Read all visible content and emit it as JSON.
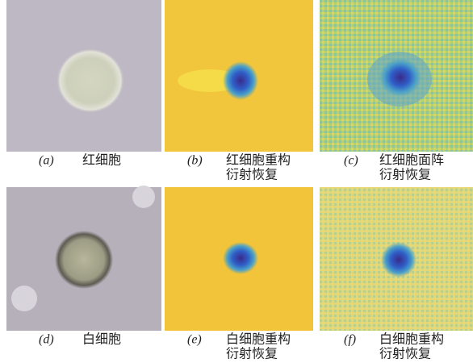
{
  "panels": [
    {
      "label": "(a)",
      "caption": [
        "红细胞"
      ]
    },
    {
      "label": "(b)",
      "caption": [
        "红细胞重构",
        "衍射恢复"
      ]
    },
    {
      "label": "(c)",
      "caption": [
        "红细胞面阵",
        "衍射恢复"
      ]
    },
    {
      "label": "(d)",
      "caption": [
        "白细胞"
      ]
    },
    {
      "label": "(e)",
      "caption": [
        "白细胞重构",
        "衍射恢复"
      ]
    },
    {
      "label": "(f)",
      "caption": [
        "白细胞重构",
        "衍射恢复"
      ]
    }
  ]
}
